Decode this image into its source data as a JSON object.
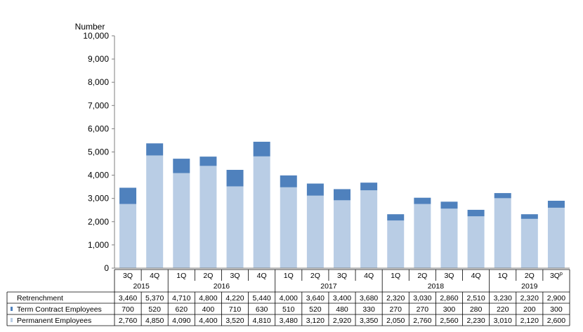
{
  "chart_data": {
    "type": "bar",
    "stacked": true,
    "ylabel": "Number",
    "ylim": [
      0,
      10000
    ],
    "yticks": [
      "0",
      "1,000",
      "2,000",
      "3,000",
      "4,000",
      "5,000",
      "6,000",
      "7,000",
      "8,000",
      "9,000",
      "10,000"
    ],
    "grid": false,
    "quarters": [
      "3Q",
      "4Q",
      "1Q",
      "2Q",
      "3Q",
      "4Q",
      "1Q",
      "2Q",
      "3Q",
      "4Q",
      "1Q",
      "2Q",
      "3Q",
      "4Q",
      "1Q",
      "2Q",
      "3Q"
    ],
    "last_quarter_superscript": "p",
    "years": [
      {
        "label": "2015",
        "start": 0,
        "count": 2
      },
      {
        "label": "2016",
        "start": 2,
        "count": 4
      },
      {
        "label": "2017",
        "start": 6,
        "count": 4
      },
      {
        "label": "2018",
        "start": 10,
        "count": 4
      },
      {
        "label": "2019",
        "start": 14,
        "count": 3
      }
    ],
    "series": [
      {
        "name": "Permanent Employees",
        "color": "#b9cde5",
        "values": [
          2760,
          4850,
          4090,
          4400,
          3520,
          4810,
          3480,
          3120,
          2920,
          3350,
          2050,
          2760,
          2560,
          2230,
          3010,
          2120,
          2600
        ]
      },
      {
        "name": "Term Contract Employees",
        "color": "#4f81bd",
        "values": [
          700,
          520,
          620,
          400,
          710,
          630,
          510,
          520,
          480,
          330,
          270,
          270,
          300,
          280,
          220,
          200,
          300
        ]
      }
    ],
    "table": {
      "rows": [
        {
          "label": "Retrenchment",
          "marker_color": "",
          "cells": [
            "3,460",
            "5,370",
            "4,710",
            "4,800",
            "4,220",
            "5,440",
            "4,000",
            "3,640",
            "3,400",
            "3,680",
            "2,320",
            "3,030",
            "2,860",
            "2,510",
            "3,230",
            "2,320",
            "2,900"
          ]
        },
        {
          "label": "Term Contract Employees",
          "marker_color": "#4f81bd",
          "cells": [
            "700",
            "520",
            "620",
            "400",
            "710",
            "630",
            "510",
            "520",
            "480",
            "330",
            "270",
            "270",
            "300",
            "280",
            "220",
            "200",
            "300"
          ]
        },
        {
          "label": "Permanent Employees",
          "marker_color": "#b9cde5",
          "cells": [
            "2,760",
            "4,850",
            "4,090",
            "4,400",
            "3,520",
            "4,810",
            "3,480",
            "3,120",
            "2,920",
            "3,350",
            "2,050",
            "2,760",
            "2,560",
            "2,230",
            "3,010",
            "2,120",
            "2,600"
          ]
        }
      ]
    }
  }
}
